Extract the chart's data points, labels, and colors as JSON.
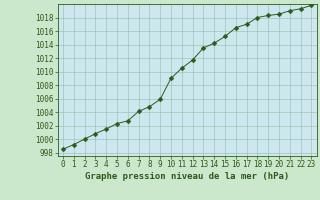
{
  "x": [
    0,
    1,
    2,
    3,
    4,
    5,
    6,
    7,
    8,
    9,
    10,
    11,
    12,
    13,
    14,
    15,
    16,
    17,
    18,
    19,
    20,
    21,
    22,
    23
  ],
  "y": [
    998.5,
    999.2,
    1000.0,
    1000.8,
    1001.5,
    1002.3,
    1002.7,
    1004.1,
    1004.8,
    1005.9,
    1009.0,
    1010.5,
    1011.7,
    1013.5,
    1014.2,
    1015.2,
    1016.5,
    1017.0,
    1018.0,
    1018.3,
    1018.5,
    1019.0,
    1019.3,
    1019.8
  ],
  "line_color": "#2d5a1b",
  "marker": "D",
  "marker_size": 2.5,
  "background_color": "#cce8cc",
  "plot_bg_color": "#cce8ee",
  "grid_color": "#99bbaa",
  "xlabel": "Graphe pression niveau de la mer (hPa)",
  "ylim": [
    997.5,
    1020
  ],
  "xlim": [
    -0.5,
    23.5
  ],
  "yticks": [
    998,
    1000,
    1002,
    1004,
    1006,
    1008,
    1010,
    1012,
    1014,
    1016,
    1018
  ],
  "xticks": [
    0,
    1,
    2,
    3,
    4,
    5,
    6,
    7,
    8,
    9,
    10,
    11,
    12,
    13,
    14,
    15,
    16,
    17,
    18,
    19,
    20,
    21,
    22,
    23
  ],
  "tick_fontsize": 5.5,
  "label_fontsize": 6.5
}
